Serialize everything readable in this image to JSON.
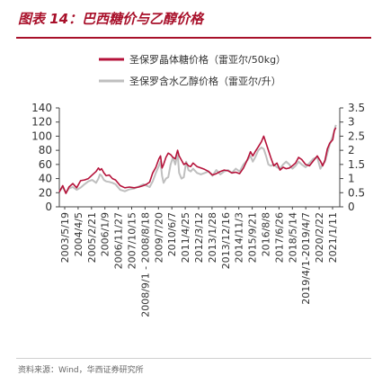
{
  "figure_title": "图表 14：巴西糖价与乙醇价格",
  "source_text": "资料来源：Wind，华西证券研究所",
  "chart_data": {
    "type": "line",
    "legend_position": "top-center",
    "grid": false,
    "y_left": {
      "ticks": [
        0,
        20,
        40,
        60,
        80,
        100,
        120,
        140
      ],
      "range": [
        0,
        140
      ]
    },
    "y_right": {
      "ticks": [
        "0",
        "0.5",
        "1",
        "1.5",
        "2",
        "2.5",
        "3",
        "3.5"
      ],
      "range": [
        0,
        3.5
      ]
    },
    "x_ticks": [
      "2003/5/19",
      "2004/4/5",
      "2005/2/21",
      "2006/1/9",
      "2006/11/27",
      "2007/10/15",
      "2008/9/1 - 2008/8/18",
      "2009/7/20",
      "2010/6/7",
      "2011/4/25",
      "2012/3/12",
      "2013/1/28",
      "2013/12/16",
      "2014/11/3",
      "2015/9/21",
      "2016/8/8",
      "2017/6/26",
      "2018/5/14",
      "2019/4/1-2019/4/7",
      "2020/2/22",
      "2021/1/11"
    ],
    "series": [
      {
        "name": "圣保罗晶体糖价格（雷亚尔/50kg）",
        "axis": "left",
        "color": "#b5123a",
        "x": [
          2003.38,
          2003.6,
          2003.8,
          2004.0,
          2004.25,
          2004.5,
          2004.75,
          2005.0,
          2005.25,
          2005.5,
          2005.75,
          2005.9,
          2006.0,
          2006.1,
          2006.25,
          2006.4,
          2006.6,
          2006.8,
          2007.0,
          2007.3,
          2007.6,
          2007.9,
          2008.2,
          2008.5,
          2008.8,
          2009.0,
          2009.2,
          2009.4,
          2009.6,
          2009.8,
          2009.9,
          2010.0,
          2010.1,
          2010.25,
          2010.4,
          2010.55,
          2010.7,
          2010.85,
          2011.0,
          2011.1,
          2011.25,
          2011.4,
          2011.55,
          2011.7,
          2011.85,
          2012.0,
          2012.25,
          2012.5,
          2012.75,
          2013.0,
          2013.25,
          2013.5,
          2013.75,
          2014.0,
          2014.25,
          2014.5,
          2014.75,
          2015.0,
          2015.25,
          2015.5,
          2015.7,
          2015.85,
          2016.0,
          2016.2,
          2016.4,
          2016.55,
          2016.7,
          2016.85,
          2017.0,
          2017.2,
          2017.4,
          2017.6,
          2017.8,
          2018.0,
          2018.2,
          2018.4,
          2018.6,
          2018.8,
          2019.0,
          2019.25,
          2019.5,
          2019.75,
          2020.0,
          2020.2,
          2020.35,
          2020.5,
          2020.65,
          2020.8,
          2021.0,
          2021.1,
          2021.2
        ],
        "values": [
          21,
          30,
          19,
          28,
          33,
          27,
          37,
          38,
          40,
          45,
          50,
          55,
          52,
          54,
          48,
          44,
          45,
          40,
          38,
          30,
          27,
          28,
          27,
          28,
          30,
          32,
          35,
          48,
          56,
          68,
          72,
          55,
          60,
          70,
          76,
          74,
          70,
          68,
          80,
          72,
          66,
          60,
          62,
          58,
          57,
          62,
          57,
          55,
          53,
          50,
          45,
          47,
          50,
          52,
          51,
          48,
          49,
          47,
          55,
          67,
          78,
          72,
          78,
          85,
          92,
          100,
          90,
          80,
          70,
          58,
          62,
          52,
          56,
          54,
          55,
          58,
          62,
          70,
          67,
          60,
          58,
          65,
          72,
          65,
          58,
          66,
          82,
          90,
          95,
          108,
          112
        ]
      },
      {
        "name": "圣保罗含水乙醇价格（雷亚尔/升）",
        "axis": "right",
        "color": "#bfbfbf",
        "x": [
          2003.38,
          2003.6,
          2003.8,
          2004.0,
          2004.25,
          2004.5,
          2004.75,
          2005.0,
          2005.25,
          2005.5,
          2005.75,
          2005.9,
          2006.0,
          2006.1,
          2006.25,
          2006.4,
          2006.6,
          2006.8,
          2007.0,
          2007.3,
          2007.6,
          2007.9,
          2008.2,
          2008.5,
          2008.8,
          2009.0,
          2009.2,
          2009.4,
          2009.6,
          2009.8,
          2009.9,
          2010.0,
          2010.1,
          2010.25,
          2010.4,
          2010.55,
          2010.7,
          2010.85,
          2011.0,
          2011.1,
          2011.25,
          2011.4,
          2011.55,
          2011.7,
          2011.85,
          2012.0,
          2012.25,
          2012.5,
          2012.75,
          2013.0,
          2013.25,
          2013.5,
          2013.75,
          2014.0,
          2014.25,
          2014.5,
          2014.75,
          2015.0,
          2015.25,
          2015.5,
          2015.7,
          2015.85,
          2016.0,
          2016.2,
          2016.4,
          2016.55,
          2016.7,
          2016.85,
          2017.0,
          2017.2,
          2017.4,
          2017.6,
          2017.8,
          2018.0,
          2018.2,
          2018.4,
          2018.6,
          2018.8,
          2019.0,
          2019.25,
          2019.5,
          2019.75,
          2020.0,
          2020.2,
          2020.35,
          2020.5,
          2020.65,
          2020.8,
          2021.0,
          2021.1,
          2021.2
        ],
        "values": [
          0.55,
          0.7,
          0.5,
          0.65,
          0.7,
          0.6,
          0.68,
          0.8,
          0.9,
          0.95,
          0.85,
          1.0,
          1.15,
          1.1,
          0.95,
          0.9,
          0.88,
          0.85,
          0.8,
          0.6,
          0.55,
          0.62,
          0.65,
          0.72,
          0.8,
          0.75,
          0.7,
          0.9,
          1.2,
          1.45,
          1.6,
          1.1,
          0.85,
          1.0,
          1.05,
          1.5,
          1.75,
          1.5,
          1.9,
          1.2,
          1.0,
          1.05,
          1.6,
          1.3,
          1.25,
          1.35,
          1.2,
          1.15,
          1.2,
          1.25,
          1.1,
          1.3,
          1.15,
          1.25,
          1.3,
          1.2,
          1.35,
          1.25,
          1.5,
          1.65,
          1.8,
          1.6,
          1.75,
          2.0,
          2.1,
          2.05,
          1.8,
          1.5,
          1.45,
          1.5,
          1.4,
          1.35,
          1.5,
          1.6,
          1.5,
          1.35,
          1.45,
          1.6,
          1.5,
          1.4,
          1.55,
          1.7,
          1.75,
          1.35,
          1.5,
          1.6,
          1.9,
          2.2,
          2.5,
          2.7,
          2.9
        ]
      }
    ]
  }
}
